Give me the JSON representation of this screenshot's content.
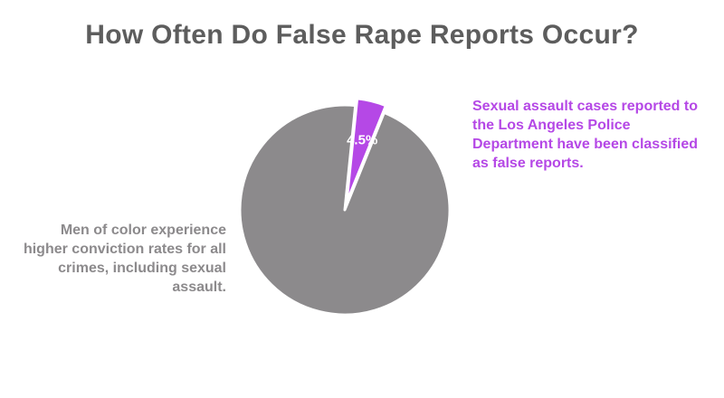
{
  "title": "How Often Do False Rape Reports Occur?",
  "annotations": {
    "left": "Men of color experience higher conviction rates for all crimes, including sexual assault.",
    "right": "Sexual assault cases reported to the Los Angeles Police Department have been classified as false reports."
  },
  "chart_data": {
    "type": "pie",
    "title": "How Often Do False Rape Reports Occur?",
    "slices": [
      {
        "value": 95.5,
        "label": "",
        "color": "#8c8a8c",
        "exploded": false
      },
      {
        "value": 4.5,
        "label": "4.5%",
        "color": "#b548e6",
        "exploded": true
      }
    ],
    "legend": "none"
  }
}
